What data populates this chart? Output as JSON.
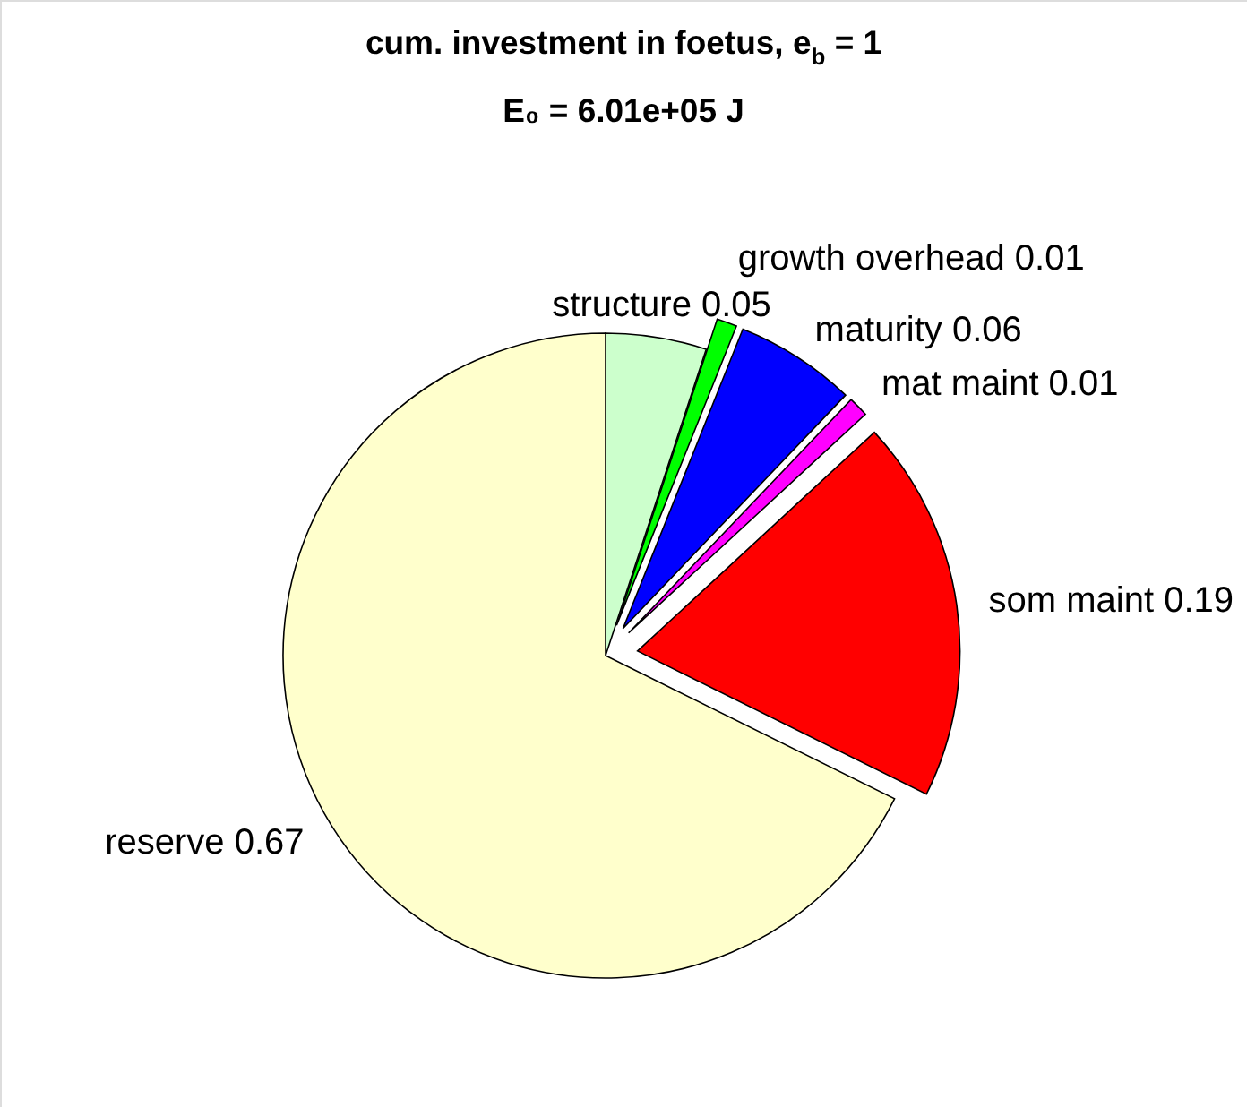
{
  "chart_data": {
    "type": "pie",
    "title": "cum. investment in foetus, e$_{b}$ = 1",
    "subtitle": "E₀ = 6.01e+05 J",
    "categories": [
      "structure 0.05",
      "growth overhead 0.01",
      "maturity 0.06",
      "mat maint 0.01",
      "som maint 0.19",
      "reserve 0.67"
    ],
    "values": [
      0.05,
      0.01,
      0.06,
      0.01,
      0.19,
      0.67
    ],
    "colors": [
      "#ccffcc",
      "#00ff00",
      "#0000ff",
      "#ff00ff",
      "#ff0000",
      "#ffffcc"
    ]
  }
}
